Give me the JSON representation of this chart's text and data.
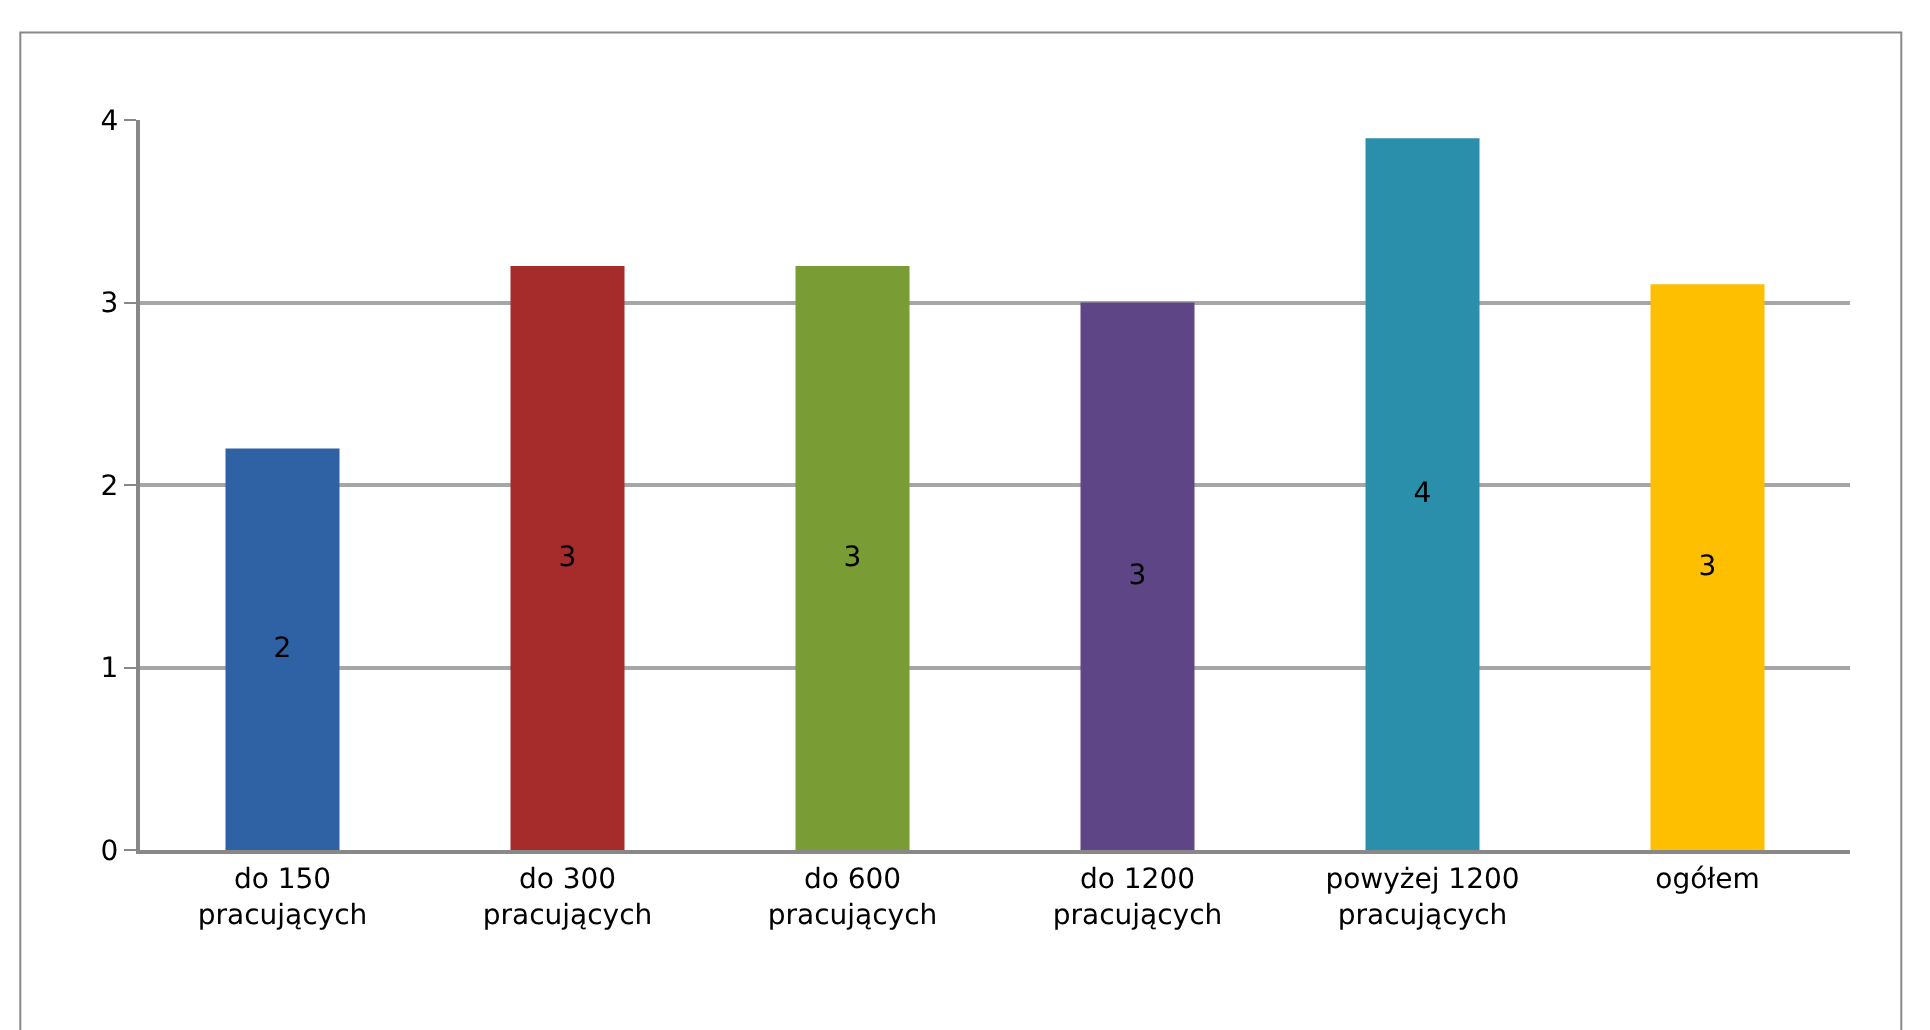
{
  "chart_data": {
    "type": "bar",
    "categories": [
      "do 150 pracujących",
      "do 300 pracujących",
      "do 600 pracujących",
      "do 1200 pracujących",
      "powyżej 1200 pracujących",
      "ogółem"
    ],
    "values": [
      2.2,
      3.2,
      3.2,
      3.0,
      3.9,
      3.1
    ],
    "value_labels": [
      "2",
      "3",
      "3",
      "3",
      "4",
      "3"
    ],
    "colors": [
      "#2e62a4",
      "#a62b2b",
      "#7a9c34",
      "#5e4585",
      "#2a8fab",
      "#fdbf00"
    ],
    "ylim": [
      0,
      4
    ],
    "yticks": [
      0,
      1,
      2,
      3,
      4
    ],
    "grid": "y"
  }
}
